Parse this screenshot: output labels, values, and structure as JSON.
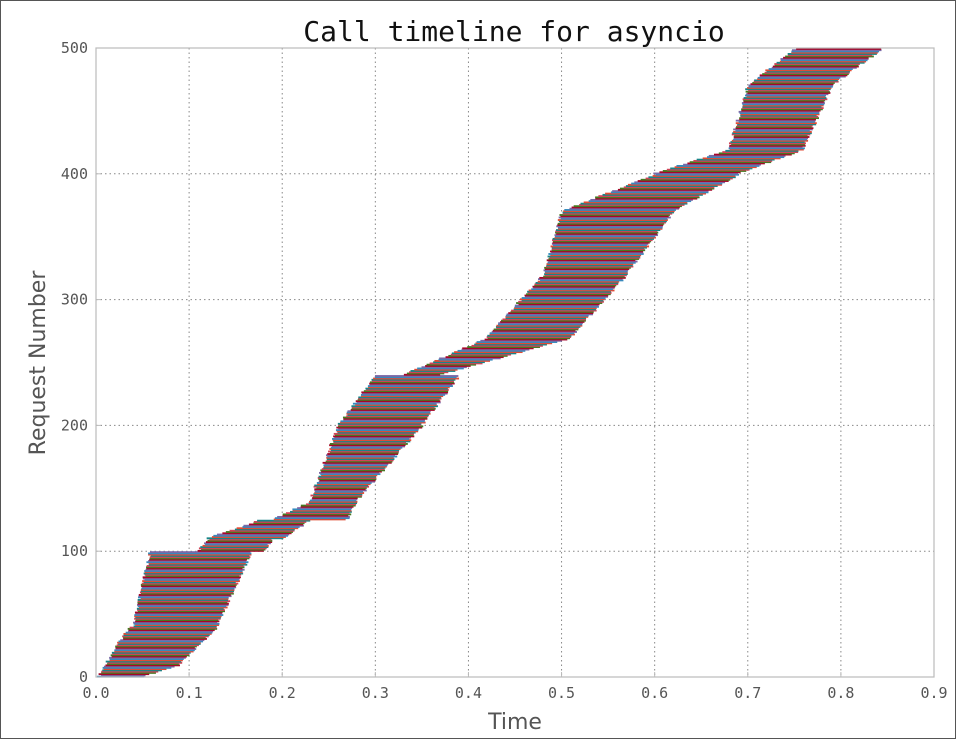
{
  "chart_data": {
    "type": "timeline",
    "title": "Call timeline for asyncio",
    "xlabel": "Time",
    "ylabel": "Request Number",
    "xlim": [
      0.0,
      0.9
    ],
    "ylim": [
      0,
      500
    ],
    "xticks": [
      "0.0",
      "0.1",
      "0.2",
      "0.3",
      "0.4",
      "0.5",
      "0.6",
      "0.7",
      "0.8",
      "0.9"
    ],
    "yticks": [
      "0",
      "100",
      "200",
      "300",
      "400",
      "500"
    ],
    "grid": true,
    "request_count": 500,
    "series_colors": [
      "#348abd",
      "#7a68a6",
      "#a60628",
      "#467821",
      "#cf4457",
      "#188487",
      "#e24a33"
    ],
    "requests": [
      {
        "from": 0,
        "to": 10,
        "start": [
          0.003,
          0.01
        ],
        "end": [
          0.05,
          0.09
        ]
      },
      {
        "from": 10,
        "to": 40,
        "start": [
          0.01,
          0.035
        ],
        "end": [
          0.09,
          0.13
        ]
      },
      {
        "from": 40,
        "to": 100,
        "start": [
          0.04,
          0.058
        ],
        "end": [
          0.13,
          0.167
        ]
      },
      {
        "from": 100,
        "to": 110,
        "start": [
          0.11,
          0.12
        ],
        "end": [
          0.18,
          0.19
        ]
      },
      {
        "from": 110,
        "to": 125,
        "start": [
          0.12,
          0.175
        ],
        "end": [
          0.2,
          0.23
        ]
      },
      {
        "from": 125,
        "to": 140,
        "start": [
          0.19,
          0.23
        ],
        "end": [
          0.27,
          0.28
        ]
      },
      {
        "from": 140,
        "to": 200,
        "start": [
          0.23,
          0.26
        ],
        "end": [
          0.28,
          0.35
        ]
      },
      {
        "from": 200,
        "to": 240,
        "start": [
          0.26,
          0.3
        ],
        "end": [
          0.35,
          0.39
        ]
      },
      {
        "from": 240,
        "to": 270,
        "start": [
          0.33,
          0.42
        ],
        "end": [
          0.37,
          0.51
        ]
      },
      {
        "from": 270,
        "to": 320,
        "start": [
          0.42,
          0.48
        ],
        "end": [
          0.51,
          0.57
        ]
      },
      {
        "from": 320,
        "to": 370,
        "start": [
          0.48,
          0.5
        ],
        "end": [
          0.57,
          0.62
        ]
      },
      {
        "from": 370,
        "to": 400,
        "start": [
          0.5,
          0.6
        ],
        "end": [
          0.62,
          0.69
        ]
      },
      {
        "from": 400,
        "to": 420,
        "start": [
          0.6,
          0.68
        ],
        "end": [
          0.69,
          0.76
        ]
      },
      {
        "from": 420,
        "to": 470,
        "start": [
          0.68,
          0.7
        ],
        "end": [
          0.76,
          0.79
        ]
      },
      {
        "from": 470,
        "to": 500,
        "start": [
          0.7,
          0.75
        ],
        "end": [
          0.79,
          0.845
        ]
      }
    ]
  }
}
